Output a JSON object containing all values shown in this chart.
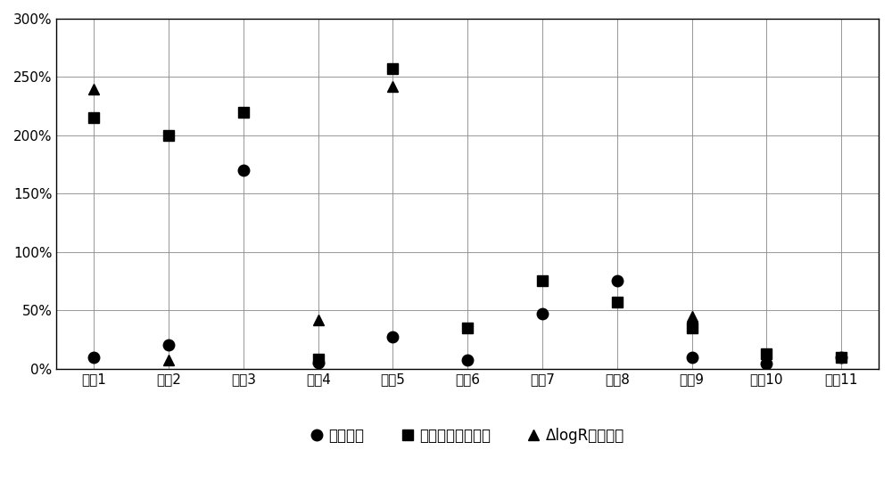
{
  "categories": [
    "数据1",
    "数据2",
    "数据3",
    "数据4",
    "数据5",
    "数据6",
    "数据7",
    "数据8",
    "数据9",
    "数据10",
    "数据11"
  ],
  "series_invention": [
    0.1,
    0.2,
    1.7,
    0.05,
    0.27,
    0.07,
    0.47,
    0.75,
    0.1,
    0.04,
    0.1
  ],
  "series_linear": [
    2.15,
    2.0,
    2.2,
    0.08,
    2.57,
    0.35,
    0.75,
    0.57,
    0.35,
    0.13,
    0.1
  ],
  "series_logr": [
    2.4,
    0.07,
    null,
    0.42,
    2.42,
    null,
    null,
    null,
    0.45,
    null,
    null
  ],
  "legend_labels": [
    "发明方法",
    "线性回归预测方法",
    "ΔlogR预测方法"
  ],
  "ylim": [
    0,
    3.0
  ],
  "yticks": [
    0.0,
    0.5,
    1.0,
    1.5,
    2.0,
    2.5,
    3.0
  ],
  "ytick_labels": [
    "0%",
    "50%",
    "100%",
    "150%",
    "200%",
    "250%",
    "300%"
  ],
  "background_color": "#ffffff",
  "marker_color": "#000000",
  "marker_size_circle": 9,
  "marker_size_square": 9,
  "marker_size_triangle": 9,
  "grid_color": "#888888",
  "grid_linewidth": 0.6
}
